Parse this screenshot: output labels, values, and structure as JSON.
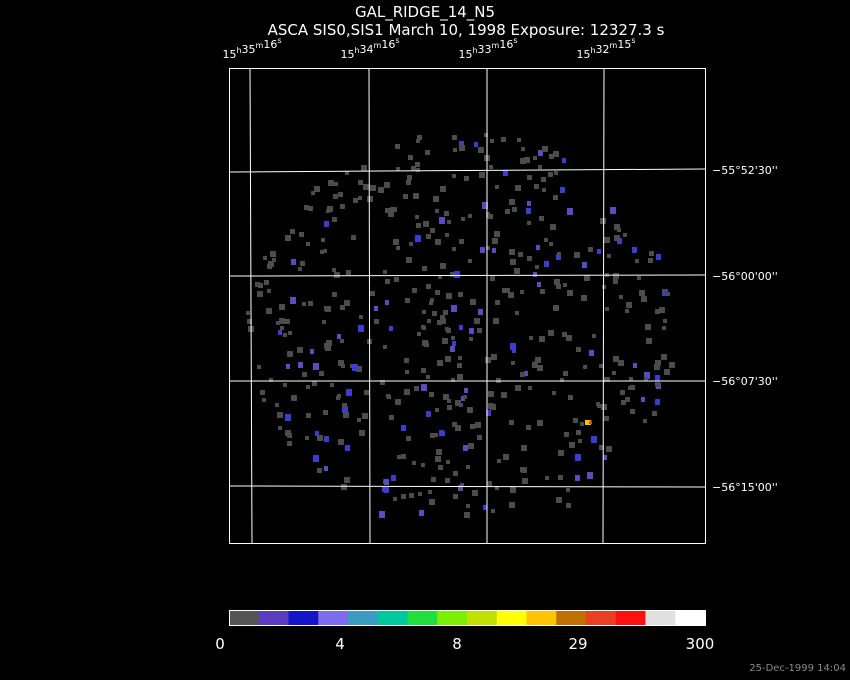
{
  "header": {
    "title": "GAL_RIDGE_14_N5",
    "subtitle": "ASCA SIS0,SIS1 March 10, 1998 Exposure: 12327.3 s"
  },
  "ra_labels": [
    {
      "hours": "15",
      "minutes": "35",
      "seconds": "16"
    },
    {
      "hours": "15",
      "minutes": "34",
      "seconds": "16"
    },
    {
      "hours": "15",
      "minutes": "33",
      "seconds": "16"
    },
    {
      "hours": "15",
      "minutes": "32",
      "seconds": "15"
    }
  ],
  "ra_units": [
    "h",
    "m",
    "s"
  ],
  "dec_labels": [
    "−55°52'30''",
    "−56°00'00''",
    "−56°07'30''",
    "−56°15'00''"
  ],
  "colorbar": {
    "colors": [
      "#555555",
      "#5a3cbe",
      "#1414c8",
      "#7c6cf0",
      "#3c9cc0",
      "#00c89c",
      "#20e040",
      "#7cf000",
      "#c0e000",
      "#ffff00",
      "#ffc400",
      "#c07000",
      "#e84020",
      "#ff1010",
      "#e0e0e0",
      "#ffffff"
    ],
    "labels": [
      "0",
      "4",
      "8",
      "29",
      "300"
    ]
  },
  "timestamp": "25-Dec-1999 14:04"
}
